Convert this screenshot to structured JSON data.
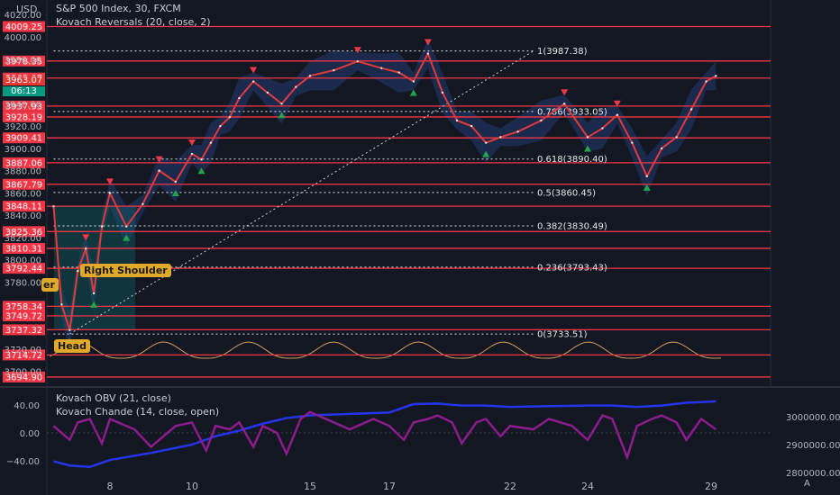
{
  "header": {
    "currency": "USD",
    "symbol_line": "S&P 500 Index, 30, FXCM",
    "indicator_line": "Kovach Reversals (20, close, 2)"
  },
  "lower_pane": {
    "line1": "Kovach OBV (21, close)",
    "line2": "Kovach Chande (14, close, open)"
  },
  "badges": {
    "price": "3963.07",
    "countdown": "06:13",
    "auto": "A"
  },
  "annotations": {
    "head": "Head",
    "right_shoulder": "Right Shoulder",
    "left_shoulder_partial": "er"
  },
  "colors": {
    "background": "#131722",
    "resistance": "#f23645",
    "price_line": "#e03a3a",
    "band_fill": "#2a4a9a",
    "obv": "#2434e8",
    "chande": "#8e1b8e",
    "volume_osc": "#d69b5c",
    "sell_marker": "#f23645",
    "buy_marker": "#22a447"
  },
  "chart_data": [
    {
      "type": "line",
      "title": "S&P 500 Index, 30, FXCM",
      "ylabel": "USD",
      "ylim": [
        3690,
        4025
      ],
      "x_ticks": [
        "8",
        "10",
        "15",
        "17",
        "22",
        "24",
        "29"
      ],
      "y_ticks": [
        4020,
        4000,
        3980,
        3960,
        3940,
        3920,
        3900,
        3880,
        3860,
        3840,
        3820,
        3800,
        3780,
        3720,
        3700
      ],
      "series": [
        {
          "name": "S&P 500 Index",
          "x": [
            5.2,
            5.6,
            6.0,
            6.4,
            6.8,
            7.2,
            7.6,
            8.0,
            8.4,
            8.8,
            9.2,
            9.6,
            10.0,
            10.4,
            10.8,
            11.2,
            11.6,
            12.0,
            12.6,
            13.2,
            13.8,
            14.4,
            15.0,
            15.6,
            16.2,
            16.8,
            17.4,
            18.0,
            18.6,
            19.2,
            19.8,
            20.4,
            21.0,
            21.6,
            22.2,
            22.8,
            23.4,
            24.0,
            24.6,
            25.2,
            25.8,
            26.4,
            27.0,
            27.6,
            28.2,
            28.8,
            29.2
          ],
          "values": [
            3848,
            3760,
            3737,
            3790,
            3810,
            3770,
            3830,
            3860,
            3830,
            3850,
            3880,
            3870,
            3895,
            3890,
            3905,
            3920,
            3928,
            3945,
            3960,
            3950,
            3940,
            3955,
            3965,
            3970,
            3978,
            3972,
            3968,
            3960,
            3985,
            3950,
            3925,
            3920,
            3905,
            3910,
            3915,
            3925,
            3940,
            3910,
            3918,
            3930,
            3905,
            3875,
            3900,
            3910,
            3935,
            3960,
            3965
          ]
        }
      ],
      "resistance_levels": [
        4009.25,
        3978.35,
        3963.07,
        3937.93,
        3928.19,
        3909.41,
        3887.06,
        3867.79,
        3848.11,
        3825.36,
        3810.31,
        3792.44,
        3758.34,
        3749.72,
        3737.32,
        3714.72,
        3694.9
      ],
      "fibonacci": [
        {
          "label": "1(3987.38)",
          "value": 3987.38
        },
        {
          "label": "0.786(3933.05)",
          "value": 3933.05
        },
        {
          "label": "0.618(3890.40)",
          "value": 3890.4
        },
        {
          "label": "0.5(3860.45)",
          "value": 3860.45
        },
        {
          "label": "0.382(3830.49)",
          "value": 3830.49
        },
        {
          "label": "0.236(3793.43)",
          "value": 3793.43
        },
        {
          "label": "0(3733.51)",
          "value": 3733.51
        }
      ]
    },
    {
      "type": "line",
      "title": "Kovach OBV (21, close) / Kovach Chande (14, close, open)",
      "y_ticks_left": [
        "40.00",
        "0.00",
        "−40.00"
      ],
      "y_ticks_right": [
        "3000000.00",
        "2900000.00",
        "2800000.00"
      ],
      "series": [
        {
          "name": "Kovach OBV (21, close)",
          "x": [
            5.2,
            6.0,
            7.0,
            8.0,
            9.0,
            10.0,
            11.0,
            12.0,
            13.0,
            14.0,
            15.0,
            16.0,
            17.0,
            18.0,
            19.0,
            20.0,
            21.0,
            22.0,
            23.0,
            24.0,
            25.0,
            26.0,
            27.0,
            28.0,
            29.2
          ],
          "values": [
            2840000,
            2825000,
            2820000,
            2845000,
            2870000,
            2900000,
            2930000,
            2950000,
            2975000,
            2995000,
            3005000,
            3010000,
            3015000,
            3045000,
            3047000,
            3040000,
            3040000,
            3035000,
            3038000,
            3040000,
            3040000,
            3035000,
            3040000,
            3050000,
            3055000
          ]
        },
        {
          "name": "Kovach Chande (14, close, open)",
          "x": [
            5.2,
            5.6,
            6.0,
            6.4,
            7.0,
            7.6,
            8.0,
            8.6,
            9.0,
            9.6,
            10.0,
            10.6,
            11.0,
            11.6,
            12.0,
            12.6,
            13.0,
            13.6,
            14.0,
            14.6,
            15.0,
            15.6,
            16.0,
            16.6,
            17.0,
            17.6,
            18.0,
            18.6,
            19.0,
            19.6,
            20.0,
            20.6,
            21.0,
            21.6,
            22.0,
            22.6,
            23.0,
            23.6,
            24.0,
            24.6,
            25.0,
            25.6,
            26.0,
            26.6,
            27.0,
            27.6,
            28.0,
            28.6,
            29.2
          ],
          "values": [
            10,
            0,
            -10,
            15,
            20,
            -15,
            20,
            5,
            -20,
            10,
            15,
            -25,
            10,
            5,
            15,
            -20,
            10,
            0,
            -30,
            20,
            30,
            15,
            5,
            20,
            10,
            -10,
            15,
            20,
            25,
            15,
            -15,
            15,
            20,
            -5,
            10,
            5,
            20,
            10,
            -10,
            25,
            20,
            -35,
            10,
            20,
            25,
            15,
            -10,
            20,
            5
          ]
        }
      ]
    }
  ]
}
